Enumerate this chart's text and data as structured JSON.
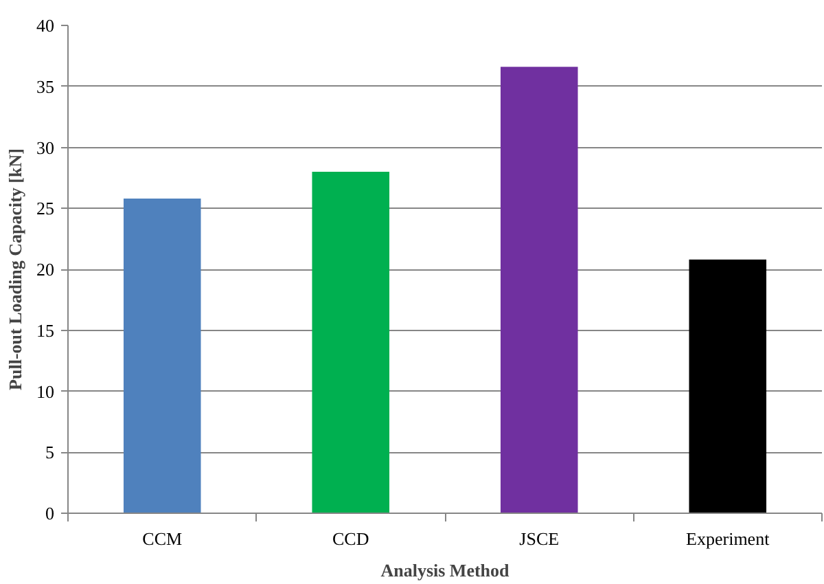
{
  "chart_data": {
    "type": "bar",
    "xlabel": "Analysis Method",
    "ylabel": "Pull-out Loading Capacity [kN]",
    "categories": [
      "CCM",
      "CCD",
      "JSCE",
      "Experiment"
    ],
    "values": [
      25.8,
      28.0,
      36.6,
      20.8
    ],
    "colors": [
      "#4f81bd",
      "#00b050",
      "#7030a0",
      "#000000"
    ],
    "ylim": [
      0,
      40
    ],
    "yticks": [
      0,
      5,
      10,
      15,
      20,
      25,
      30,
      35,
      40
    ],
    "grid": "y"
  }
}
